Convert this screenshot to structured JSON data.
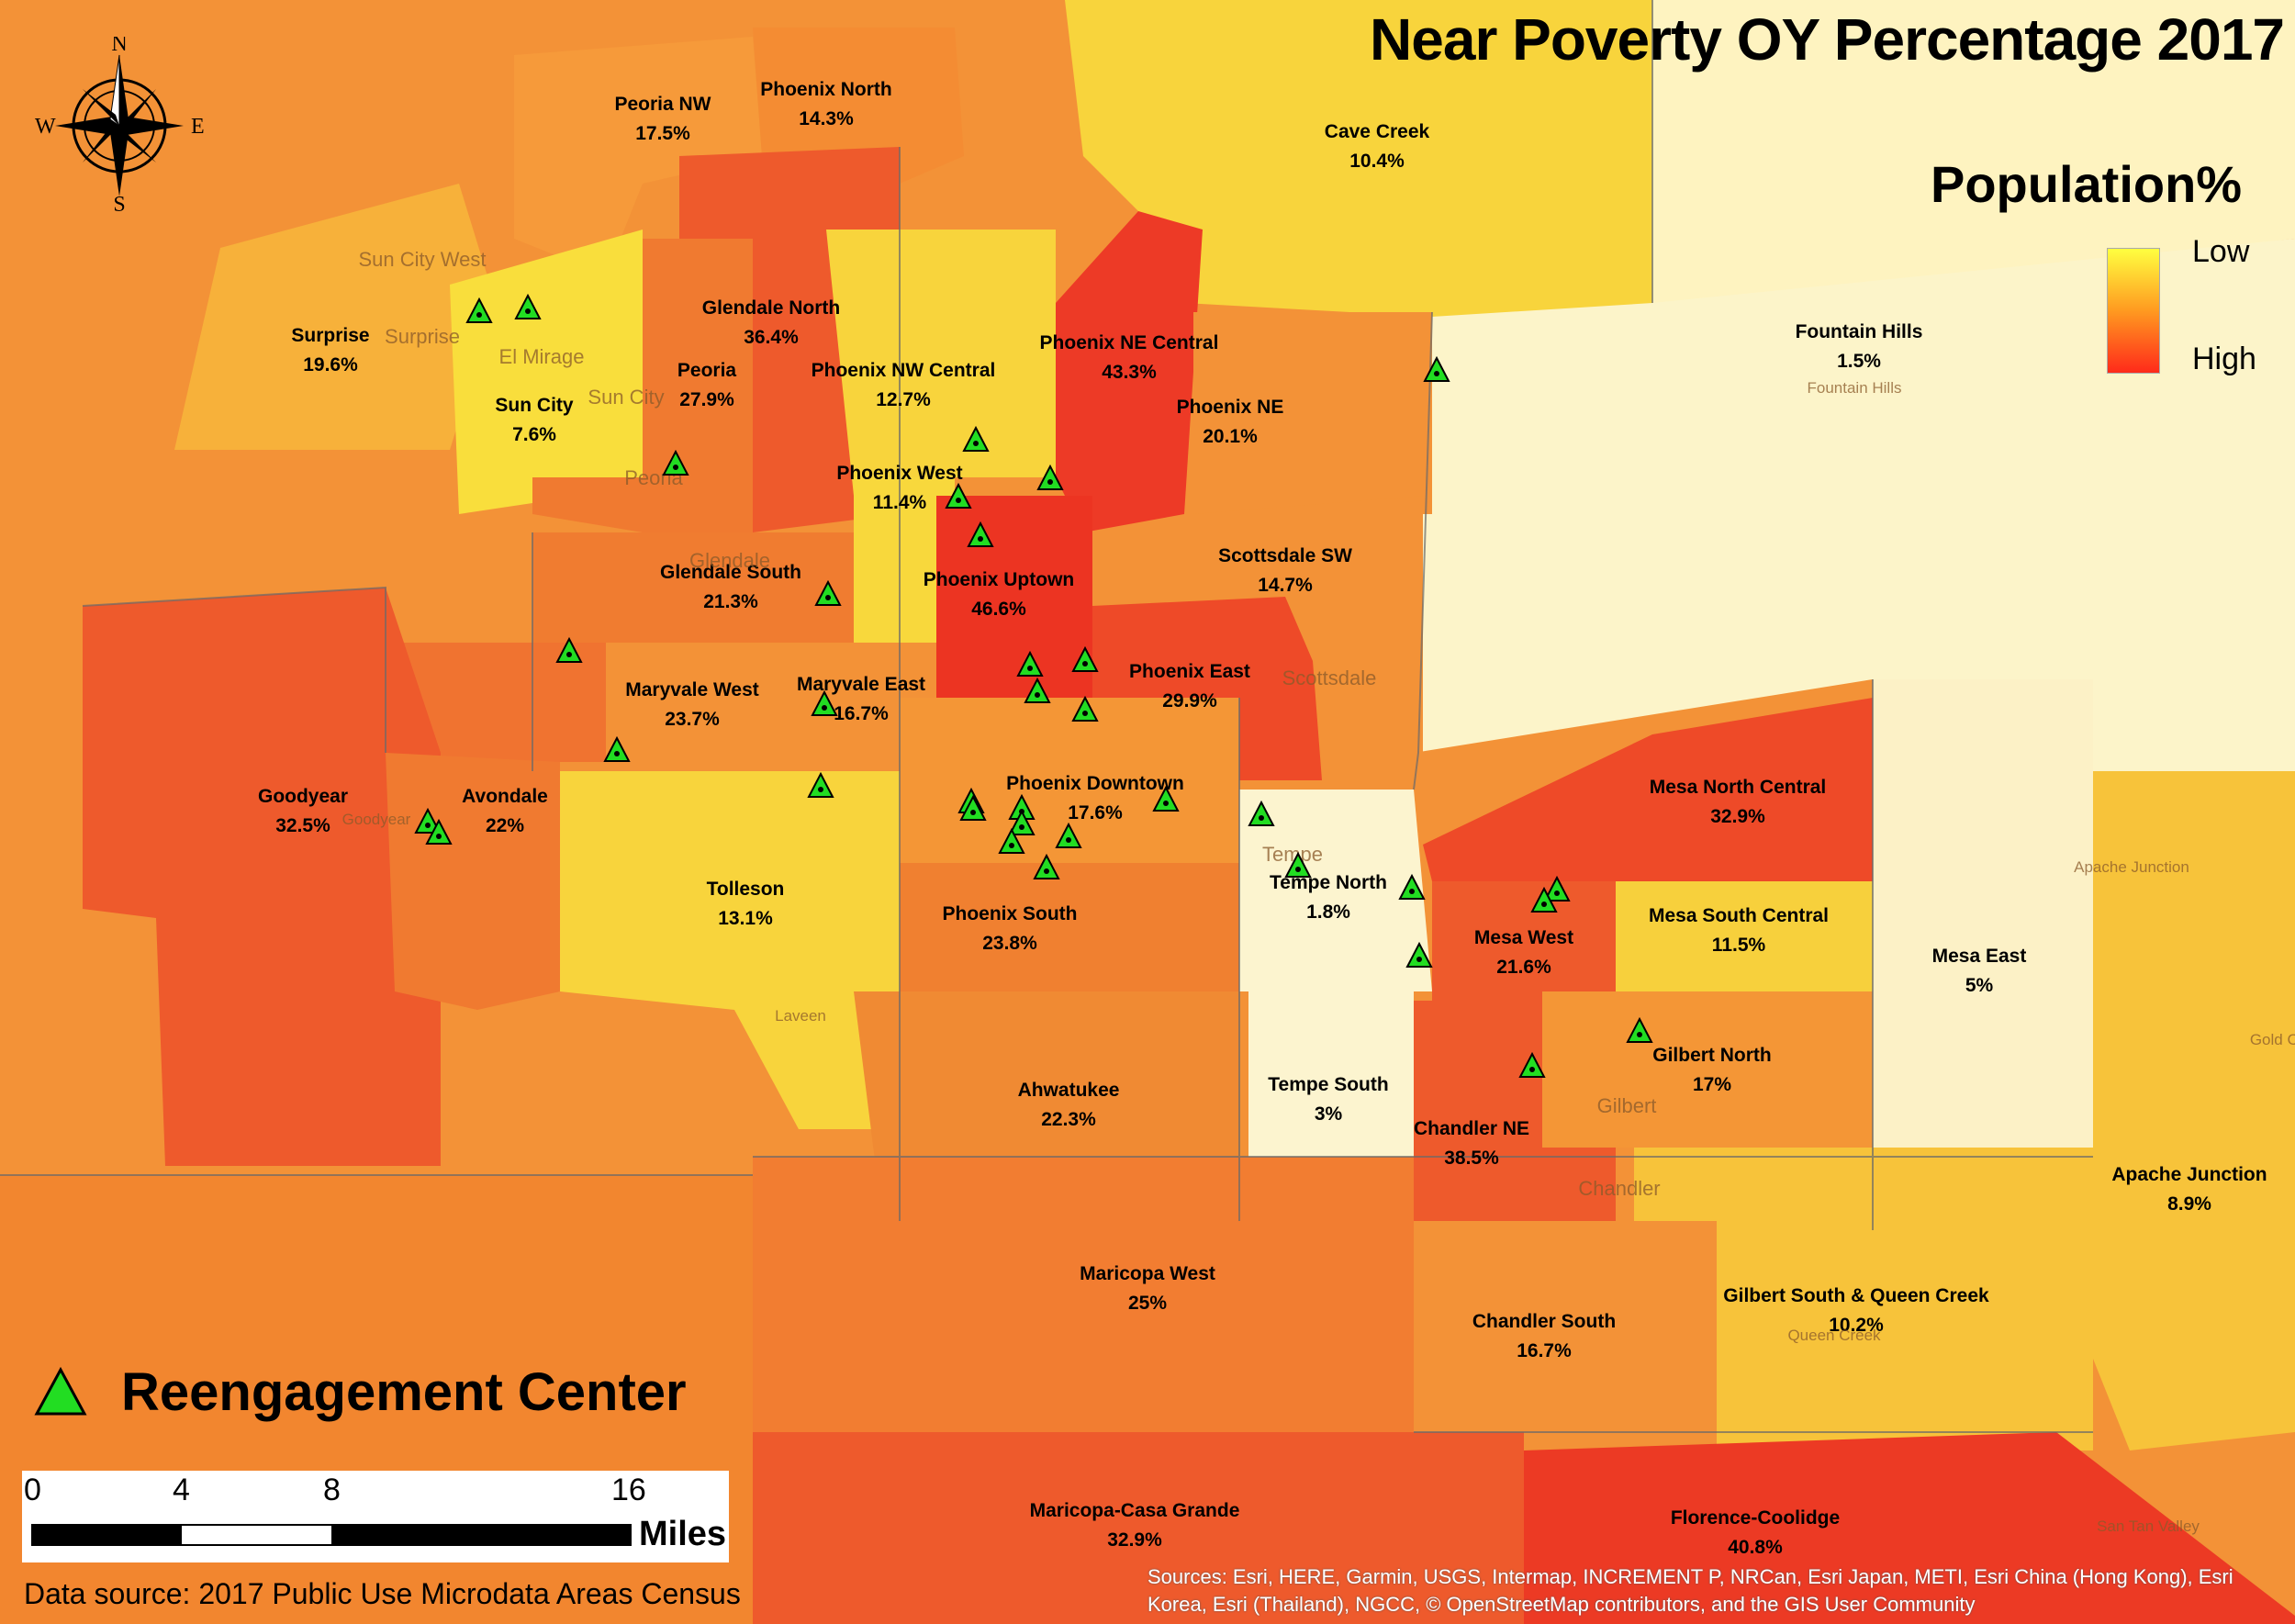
{
  "title": "Near Poverty OY Percentage 2017",
  "legend": {
    "title": "Population%",
    "low": "Low",
    "high": "High",
    "colors": {
      "low": "#ffff40",
      "mid": "#ff9a20",
      "high": "#ff2a1a"
    }
  },
  "compass": {
    "n": "N",
    "s": "S",
    "e": "E",
    "w": "W"
  },
  "districts": [
    {
      "name": "Peoria NW",
      "value": "17.5%"
    },
    {
      "name": "Phoenix North",
      "value": "14.3%"
    },
    {
      "name": "Cave Creek",
      "value": "10.4%"
    },
    {
      "name": "Glendale North",
      "value": "36.4%"
    },
    {
      "name": "Surprise",
      "value": "19.6%"
    },
    {
      "name": "Phoenix NE Central",
      "value": "43.3%"
    },
    {
      "name": "Fountain Hills",
      "value": "1.5%"
    },
    {
      "name": "Peoria",
      "value": "27.9%"
    },
    {
      "name": "Phoenix NW Central",
      "value": "12.7%"
    },
    {
      "name": "Sun City",
      "value": "7.6%"
    },
    {
      "name": "Phoenix NE",
      "value": "20.1%"
    },
    {
      "name": "Phoenix West",
      "value": "11.4%"
    },
    {
      "name": "Scottsdale SW",
      "value": "14.7%"
    },
    {
      "name": "Glendale South",
      "value": "21.3%"
    },
    {
      "name": "Phoenix Uptown",
      "value": "46.6%"
    },
    {
      "name": "Phoenix East",
      "value": "29.9%"
    },
    {
      "name": "Maryvale West",
      "value": "23.7%"
    },
    {
      "name": "Maryvale East",
      "value": "16.7%"
    },
    {
      "name": "Goodyear",
      "value": "32.5%"
    },
    {
      "name": "Avondale",
      "value": "22%"
    },
    {
      "name": "Phoenix Downtown",
      "value": "17.6%"
    },
    {
      "name": "Mesa North Central",
      "value": "32.9%"
    },
    {
      "name": "Tolleson",
      "value": "13.1%"
    },
    {
      "name": "Tempe North",
      "value": "1.8%"
    },
    {
      "name": "Phoenix South",
      "value": "23.8%"
    },
    {
      "name": "Mesa South Central",
      "value": "11.5%"
    },
    {
      "name": "Mesa West",
      "value": "21.6%"
    },
    {
      "name": "Mesa East",
      "value": "5%"
    },
    {
      "name": "Gilbert North",
      "value": "17%"
    },
    {
      "name": "Ahwatukee",
      "value": "22.3%"
    },
    {
      "name": "Tempe South",
      "value": "3%"
    },
    {
      "name": "Chandler NE",
      "value": "38.5%"
    },
    {
      "name": "Apache Junction",
      "value": "8.9%"
    },
    {
      "name": "Maricopa West",
      "value": "25%"
    },
    {
      "name": "Chandler South",
      "value": "16.7%"
    },
    {
      "name": "Gilbert South & Queen Creek",
      "value": "10.2%"
    },
    {
      "name": "Maricopa-Casa Grande",
      "value": "32.9%"
    },
    {
      "name": "Florence-Coolidge",
      "value": "40.8%"
    }
  ],
  "basemap_places": [
    "Surprise",
    "Sun City West",
    "El Mirage",
    "Sun City",
    "Peoria",
    "Glendale",
    "Tempe",
    "Scottsdale",
    "Gilbert",
    "Chandler",
    "Goodyear",
    "Laveen",
    "Fountain Hills",
    "Queen Creek",
    "Apache Junction",
    "San Tan Valley",
    "Gold Ca"
  ],
  "reengagement_label": "Reengagement Center",
  "scale": {
    "ticks": [
      "0",
      "4",
      "8",
      "16"
    ],
    "unit": "Miles"
  },
  "data_source": "Data source: 2017 Public Use Microdata Areas Census",
  "sources": "Sources: Esri, HERE, Garmin, USGS, Intermap, INCREMENT P, NRCan, Esri Japan, METI, Esri China (Hong Kong), Esri Korea, Esri (Thailand), NGCC, © OpenStreetMap contributors, and the GIS User Community"
}
